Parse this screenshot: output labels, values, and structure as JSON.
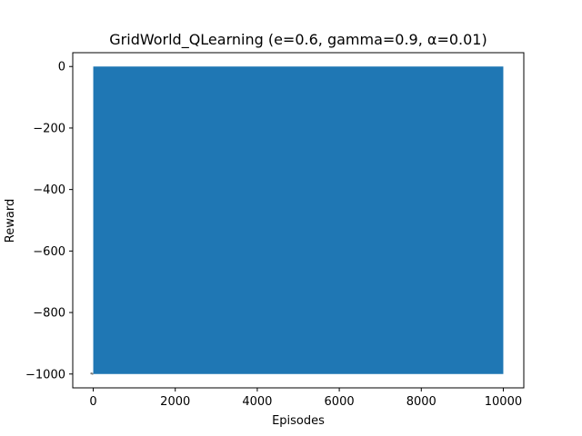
{
  "chart_data": {
    "type": "line",
    "title": "GridWorld_QLearning (e=0.6, gamma=0.9, α=0.01)",
    "xlabel": "Episodes",
    "ylabel": "Reward",
    "xlim": [
      -500,
      10500
    ],
    "ylim": [
      -1045,
      45
    ],
    "xticks": [
      0,
      2000,
      4000,
      6000,
      8000,
      10000
    ],
    "xtick_labels": [
      "0",
      "2000",
      "4000",
      "6000",
      "8000",
      "10000"
    ],
    "yticks": [
      0,
      -200,
      -400,
      -600,
      -800,
      -1000
    ],
    "ytick_labels": [
      "0",
      "−200",
      "−400",
      "−600",
      "−800",
      "−1000"
    ],
    "grid": false,
    "legend": "none",
    "series": [
      {
        "color": "#1f77b4",
        "x_range": [
          0,
          10000
        ],
        "values_min": -1000,
        "values_max": 0,
        "note_values": "rewards oscillate between -1000 and 0 across all episodes"
      }
    ]
  }
}
